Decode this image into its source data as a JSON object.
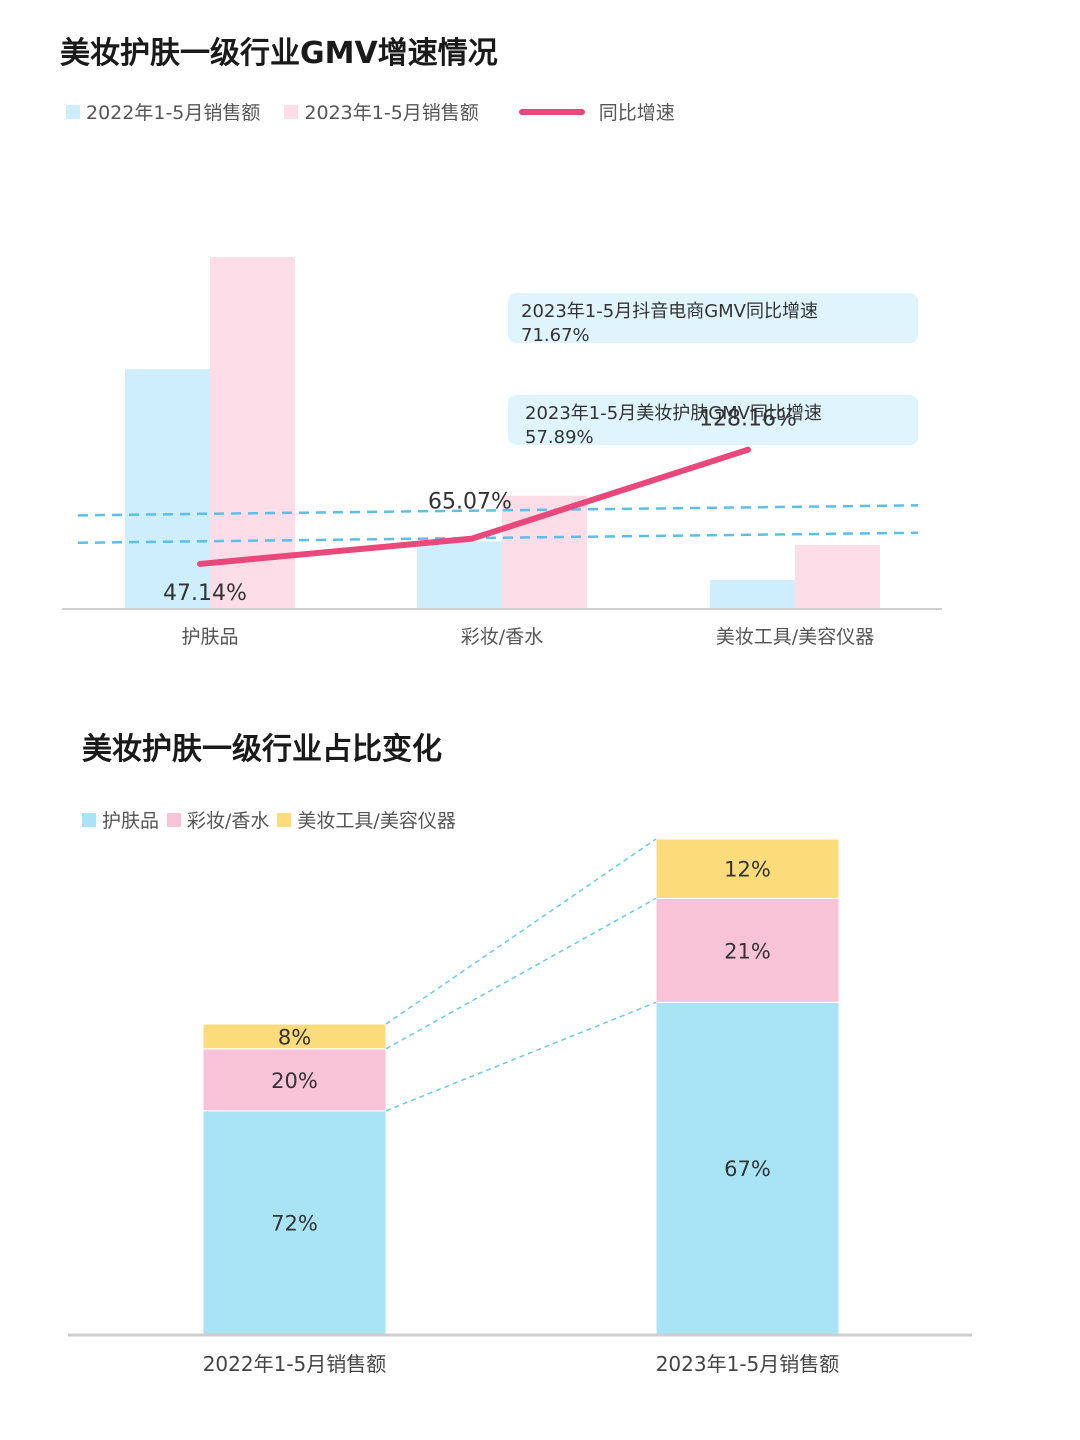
{
  "chart_data": [
    {
      "type": "bar",
      "title": "美妆护肤一级行业GMV增速情况",
      "categories": [
        "护肤品",
        "彩妆/香水",
        "美妆工具/美容仪器"
      ],
      "series": [
        {
          "name": "2022年1-5月销售额",
          "kind": "bar",
          "values": [
            68,
            19,
            8
          ]
        },
        {
          "name": "2023年1-5月销售额",
          "kind": "bar",
          "values": [
            100,
            32,
            18
          ]
        },
        {
          "name": "同比增速",
          "kind": "line",
          "values": [
            47.14,
            65.07,
            128.16
          ],
          "labels": [
            "47.14%",
            "65.07%",
            "128.16%"
          ]
        }
      ],
      "reference_lines": [
        {
          "label": "2023年1-5月抖音电商GMV同比增速",
          "value_label": "71.67%",
          "value": 71.67
        },
        {
          "label": "2023年1-5月美妆护肤GMV同比增速",
          "value_label": "57.89%",
          "value": 57.89
        }
      ],
      "ylim": [
        0,
        100
      ],
      "legend": "top-left",
      "grid": false,
      "colors": {
        "bar2022": "#cdeefa",
        "bar2023": "#fddde8",
        "line": "#e8487b",
        "ref": "#5bbfe8",
        "refbox": "#dff4fc"
      }
    },
    {
      "type": "bar",
      "stacked": true,
      "title": "美妆护肤一级行业占比变化",
      "categories": [
        "2022年1-5月销售额",
        "2023年1-5月销售额"
      ],
      "series": [
        {
          "name": "护肤品",
          "values": [
            72,
            67
          ],
          "labels": [
            "72%",
            "67%"
          ]
        },
        {
          "name": "彩妆/香水",
          "values": [
            20,
            21
          ],
          "labels": [
            "20%",
            "21%"
          ]
        },
        {
          "name": "美妆工具/美容仪器",
          "values": [
            8,
            12
          ],
          "labels": [
            "8%",
            "12%"
          ]
        }
      ],
      "ylim": [
        0,
        100
      ],
      "legend": "top-left",
      "grid": false,
      "colors": {
        "s0": "#a9e3f6",
        "s1": "#f9c3d7",
        "s2": "#fcdc7a"
      }
    }
  ]
}
